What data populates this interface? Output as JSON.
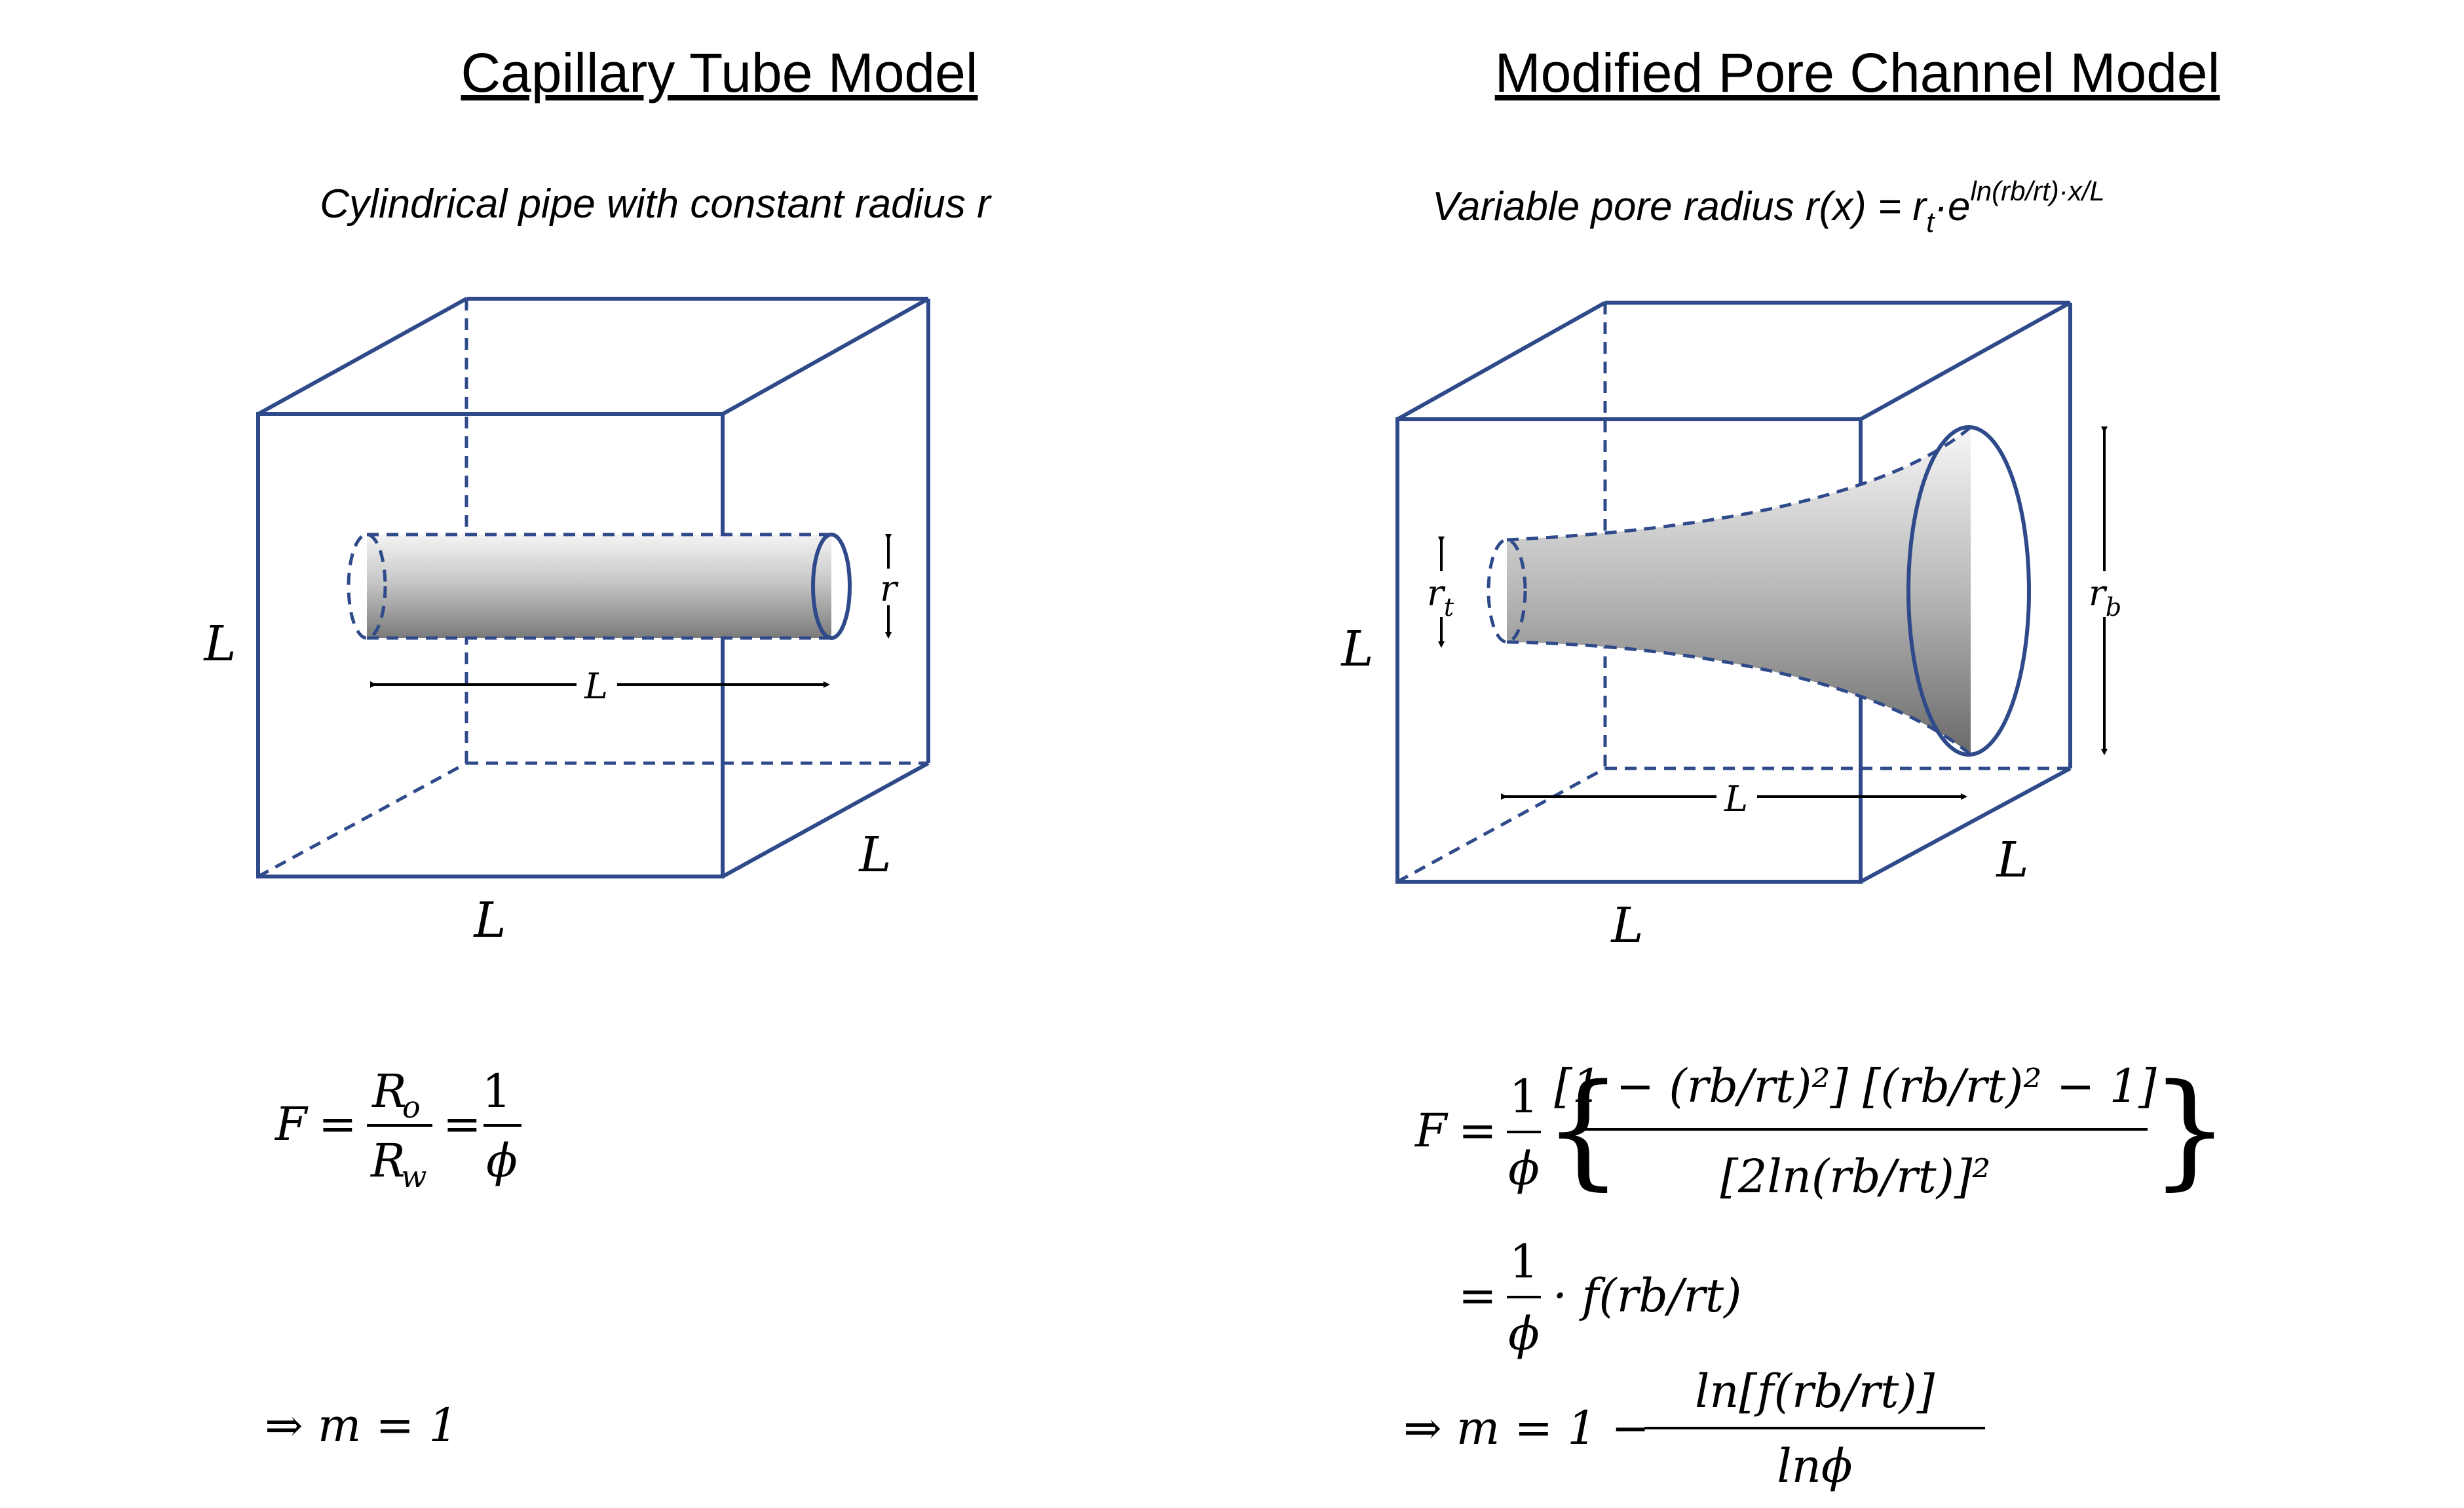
{
  "left_panel": {
    "title": "Capillary Tube Model",
    "subtitle": "Cylindrical pipe with constant radius r",
    "dims": {
      "height": "L",
      "width": "L",
      "depth": "L",
      "length": "L",
      "radius": "r"
    },
    "formula_F": "F",
    "formula_Ro": "R",
    "formula_Ro_sub": "o",
    "formula_Rw": "R",
    "formula_Rw_sub": "w",
    "formula_one": "1",
    "formula_phi": "ϕ",
    "result": "⇒ m = 1"
  },
  "right_panel": {
    "title": "Modified Pore Channel Model",
    "subtitle_main": "Variable pore radius r(x) = r",
    "subtitle_sub": "t",
    "subtitle_mid": "·e",
    "subtitle_sup": "ln(rb/rt)·x/L",
    "dims": {
      "height": "L",
      "width": "L",
      "depth": "L",
      "length": "L",
      "throat": "r",
      "throat_sub": "t",
      "body": "r",
      "body_sub": "b"
    },
    "formula_F": "F",
    "formula_num": "[1 − (rb/rt)²] [(rb/rt)² − 1]",
    "formula_den": "[2ln(rb/rt)]²",
    "formula_line2": "· f(rb/rt)",
    "result_prefix": "⇒ m = 1 −",
    "result_num": "ln[f(rb/rt)]",
    "result_den": "lnϕ"
  },
  "colors": {
    "box": "#2f4a8a",
    "text": "#000000"
  }
}
